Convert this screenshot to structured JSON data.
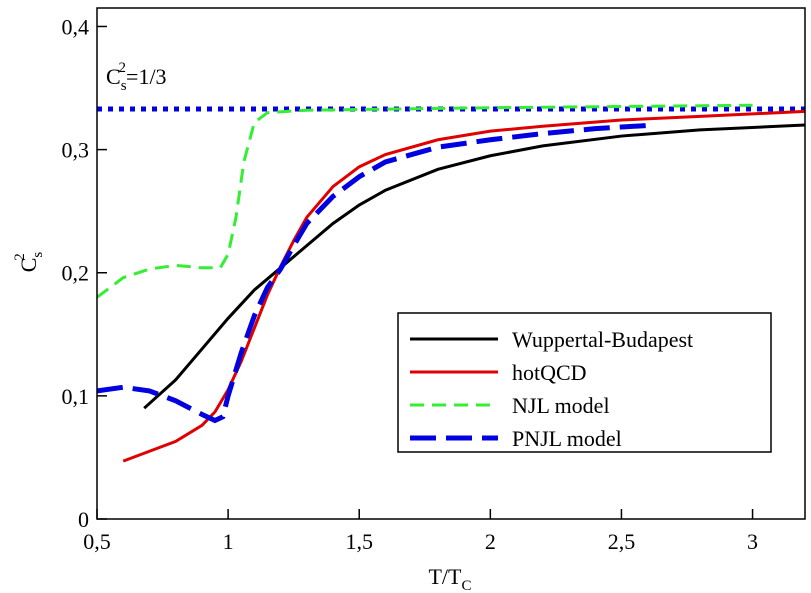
{
  "chart_data": {
    "type": "line",
    "x_label": {
      "main": "T/T",
      "sub": "C"
    },
    "y_label": {
      "main": "C",
      "sub": "s",
      "sup": "2"
    },
    "annotation": {
      "main": "C",
      "sub": "s",
      "sup": "2",
      "rest": "=1/3"
    },
    "reference_line": {
      "value": 0.333,
      "color": "#0000e0"
    },
    "xlim": [
      0.5,
      3.2
    ],
    "ylim": [
      0,
      0.415
    ],
    "xticks": [
      {
        "value": 0.5,
        "label": "0,5"
      },
      1,
      {
        "value": 1.5,
        "label": "1,5"
      },
      2,
      {
        "value": 2.5,
        "label": "2,5"
      },
      3
    ],
    "yticks": [
      0,
      {
        "value": 0.1,
        "label": "0,1"
      },
      {
        "value": 0.2,
        "label": "0,2"
      },
      {
        "value": 0.3,
        "label": "0,3"
      },
      {
        "value": 0.4,
        "label": "0,4"
      }
    ],
    "series": [
      {
        "name": "Wuppertal-Budapest",
        "color": "#000000",
        "dash": "solid",
        "x": [
          0.68,
          0.8,
          0.9,
          1.0,
          1.1,
          1.2,
          1.3,
          1.4,
          1.5,
          1.6,
          1.8,
          2.0,
          2.2,
          2.5,
          2.8,
          3.2
        ],
        "values": [
          0.09,
          0.113,
          0.138,
          0.163,
          0.186,
          0.204,
          0.222,
          0.24,
          0.255,
          0.267,
          0.284,
          0.295,
          0.303,
          0.311,
          0.316,
          0.32
        ]
      },
      {
        "name": "hotQCD",
        "color": "#e00000",
        "dash": "solid",
        "x": [
          0.6,
          0.7,
          0.8,
          0.9,
          0.95,
          1.0,
          1.05,
          1.1,
          1.15,
          1.2,
          1.25,
          1.3,
          1.4,
          1.5,
          1.6,
          1.8,
          2.0,
          2.2,
          2.5,
          2.8,
          3.2
        ],
        "values": [
          0.047,
          0.055,
          0.063,
          0.076,
          0.087,
          0.105,
          0.128,
          0.155,
          0.182,
          0.205,
          0.226,
          0.245,
          0.27,
          0.286,
          0.296,
          0.308,
          0.315,
          0.319,
          0.324,
          0.327,
          0.331
        ]
      },
      {
        "name": "NJL model",
        "color": "#33ee33",
        "dash": "short",
        "x": [
          0.5,
          0.6,
          0.7,
          0.8,
          0.9,
          0.97,
          1.0,
          1.03,
          1.06,
          1.1,
          1.15,
          1.3,
          2.0,
          3.0
        ],
        "values": [
          0.18,
          0.196,
          0.203,
          0.206,
          0.204,
          0.204,
          0.215,
          0.245,
          0.29,
          0.322,
          0.33,
          0.332,
          0.334,
          0.336
        ]
      },
      {
        "name": "PNJL model",
        "color": "#0000e0",
        "dash": "long",
        "x": [
          0.5,
          0.6,
          0.7,
          0.8,
          0.9,
          0.95,
          0.98,
          1.0,
          1.05,
          1.1,
          1.15,
          1.2,
          1.25,
          1.3,
          1.4,
          1.5,
          1.6,
          1.8,
          2.0,
          2.2,
          2.4,
          2.63
        ],
        "values": [
          0.104,
          0.107,
          0.104,
          0.096,
          0.085,
          0.08,
          0.083,
          0.1,
          0.135,
          0.165,
          0.188,
          0.203,
          0.222,
          0.24,
          0.262,
          0.278,
          0.29,
          0.302,
          0.308,
          0.313,
          0.317,
          0.32
        ]
      }
    ]
  }
}
